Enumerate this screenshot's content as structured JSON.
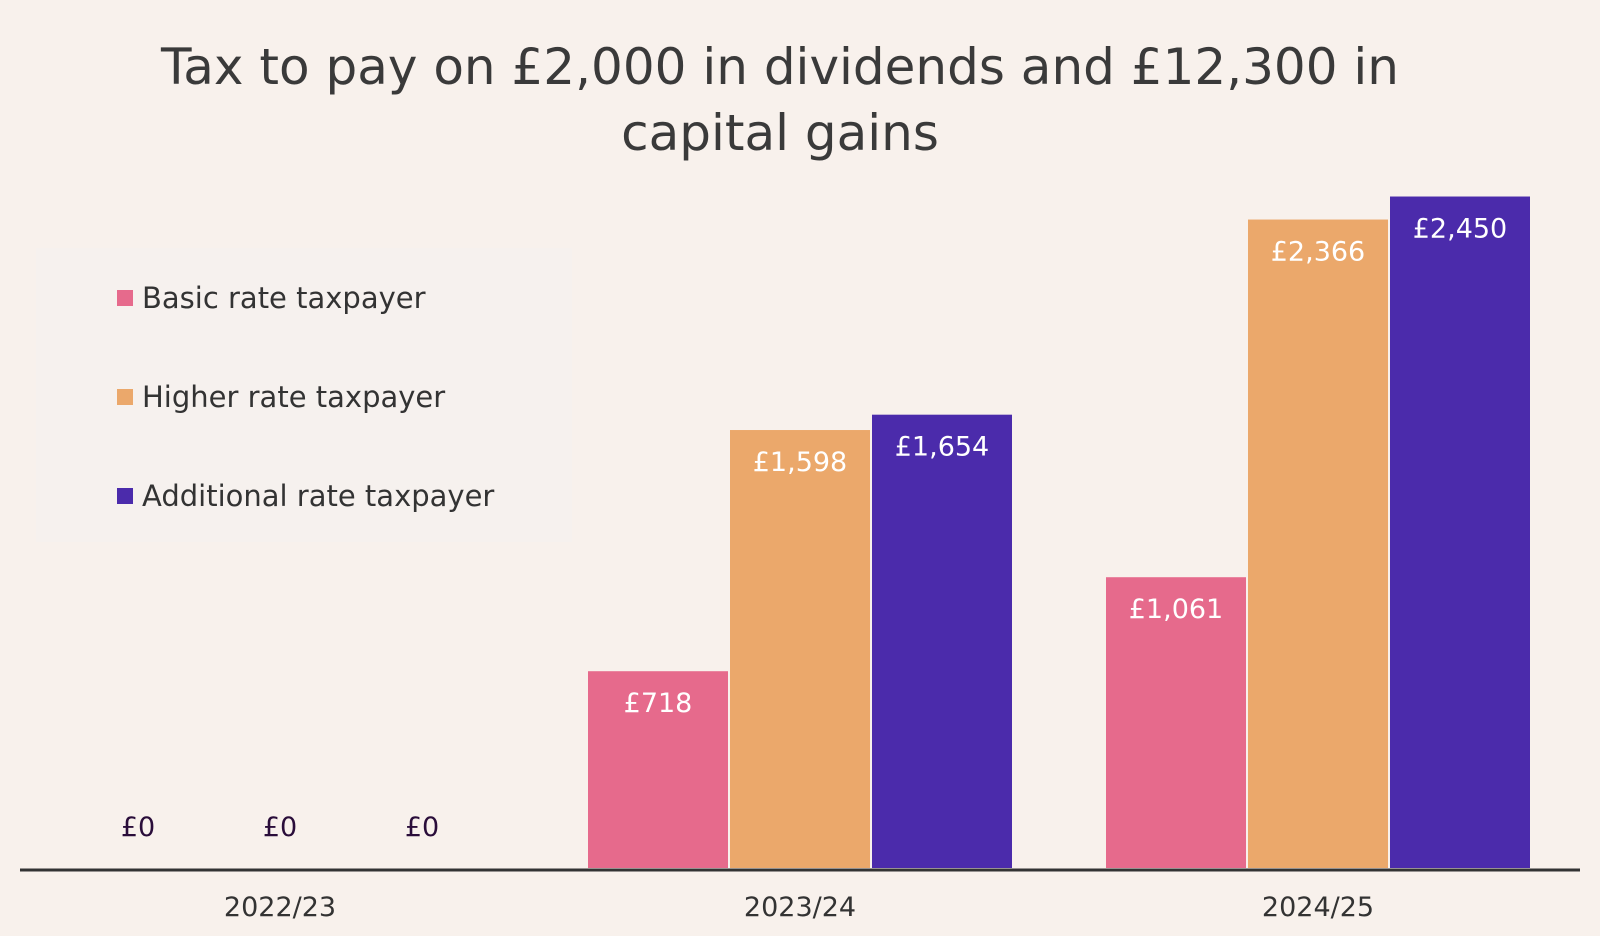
{
  "chart_data": {
    "type": "bar",
    "title": "Tax to pay on £2,000 in dividends and £12,300 in capital gains",
    "xlabel": "",
    "ylabel": "",
    "categories": [
      "2022/23",
      "2023/24",
      "2024/25"
    ],
    "series": [
      {
        "name": "Basic rate taxpayer",
        "color": "#e66a8c",
        "values": [
          0,
          718,
          1061
        ],
        "labels": [
          "£0",
          "£718",
          "£1,061"
        ]
      },
      {
        "name": "Higher rate taxpayer",
        "color": "#eba86b",
        "values": [
          0,
          1598,
          2366
        ],
        "labels": [
          "£0",
          "£1,598",
          "£2,366"
        ]
      },
      {
        "name": "Additional rate taxpayer",
        "color": "#4b2bab",
        "values": [
          0,
          1654,
          2450
        ],
        "labels": [
          "£0",
          "£1,654",
          "£2,450"
        ]
      }
    ],
    "ylim": [
      0,
      2700
    ],
    "grid": false,
    "legend_position": "top-left",
    "zero_label_color": "#2a0d3a",
    "axis_color": "#333333"
  }
}
